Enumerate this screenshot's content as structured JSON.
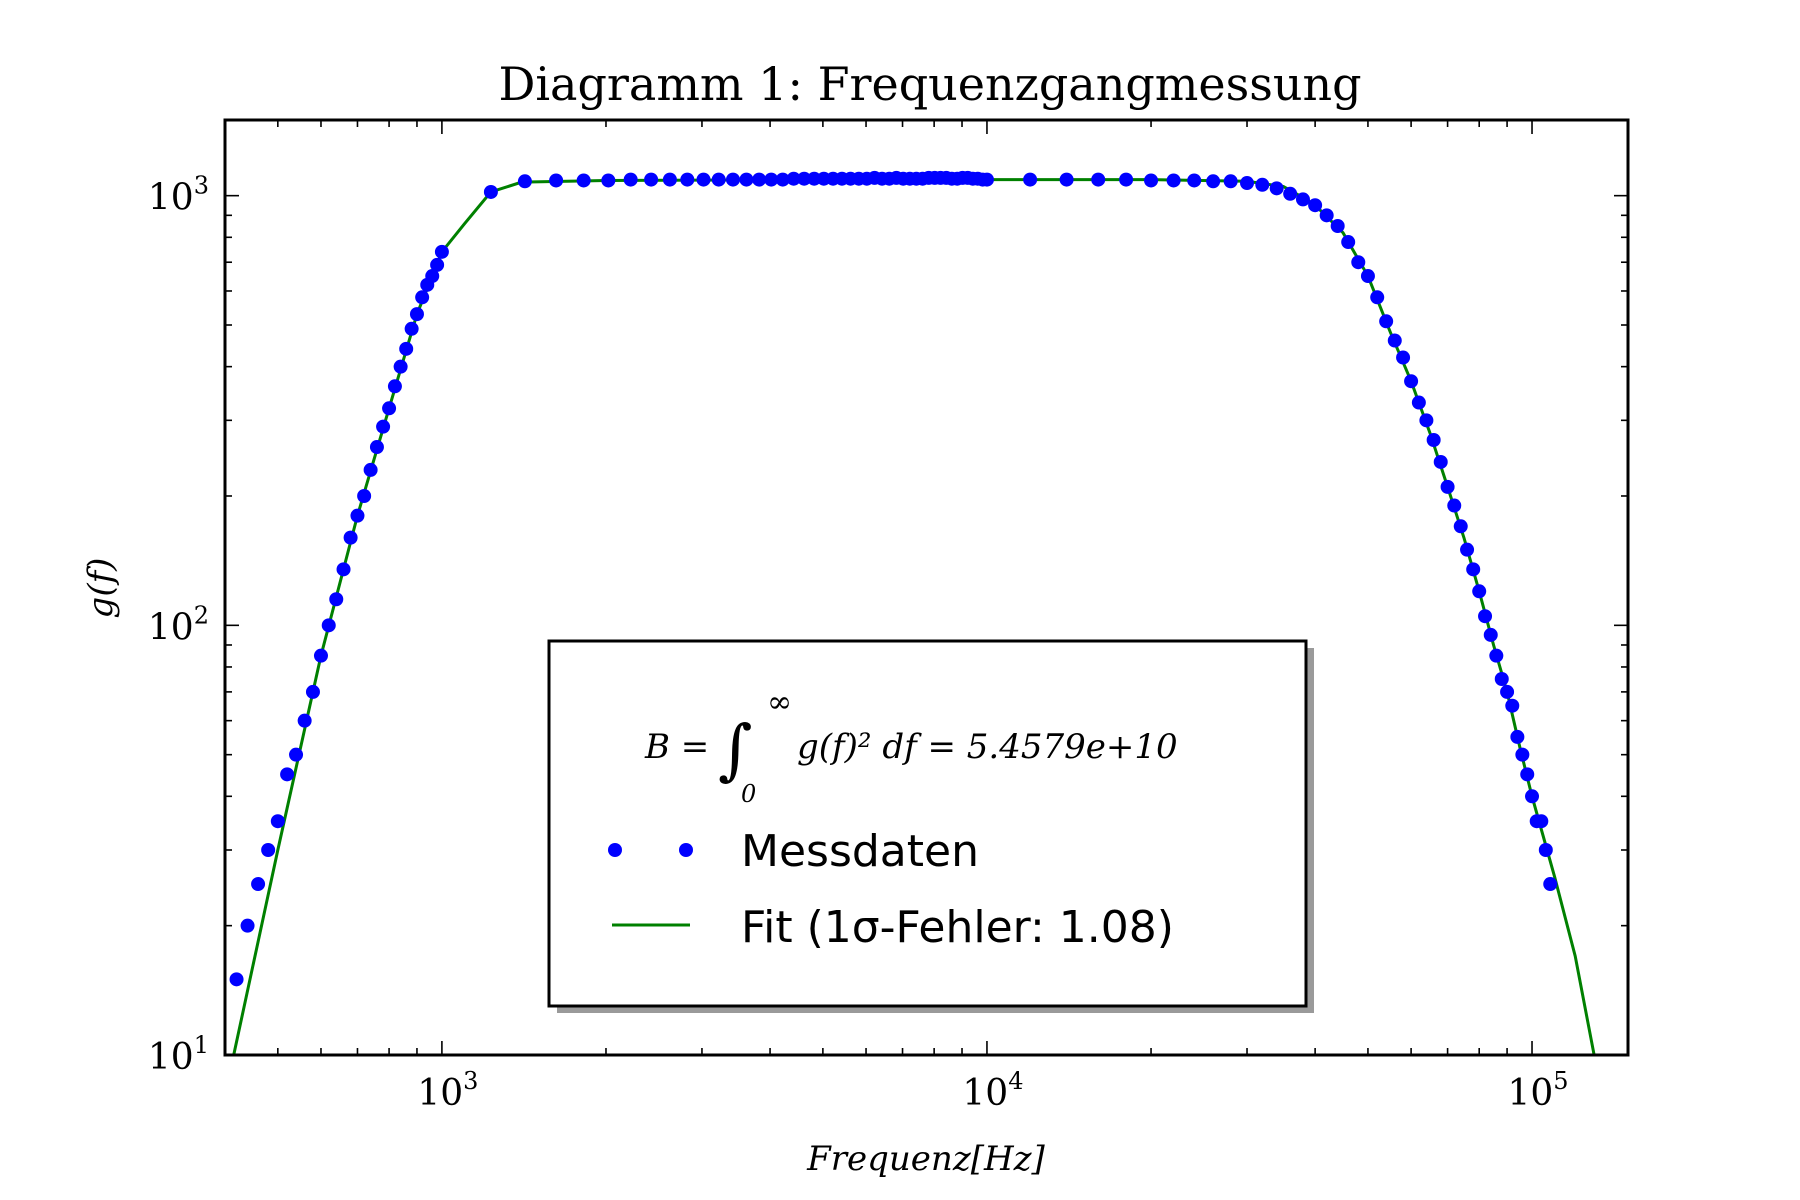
{
  "chart_data": {
    "type": "scatter",
    "title": "Diagramm 1: Frequenzgangmessung",
    "xlabel": "Frequenz[Hz]",
    "ylabel": "g(f)",
    "x_scale": "log",
    "y_scale": "log",
    "xlim": [
      400,
      150000
    ],
    "ylim": [
      10,
      1500
    ],
    "x_ticks": [
      {
        "value": 1000,
        "base": "10",
        "exp": "3"
      },
      {
        "value": 10000,
        "base": "10",
        "exp": "4"
      },
      {
        "value": 100000,
        "base": "10",
        "exp": "5"
      }
    ],
    "y_ticks": [
      {
        "value": 10,
        "base": "10",
        "exp": "1"
      },
      {
        "value": 100,
        "base": "10",
        "exp": "2"
      },
      {
        "value": 1000,
        "base": "10",
        "exp": "3"
      }
    ],
    "grid": false,
    "legend": {
      "placement": "lower-center",
      "annotation": "B = ∫₀^∞ g(f)² df = 5.4579e+10",
      "annotation_parts": {
        "lhs": "B = ",
        "integral": "∫",
        "lower": "0",
        "upper": "∞",
        "rhs": "g(f)² df = 5.4579e+10"
      },
      "entries": [
        {
          "label": "Messdaten",
          "style": "markers",
          "color": "#0000ff"
        },
        {
          "label": "Fit (1σ-Fehler: 1.08)",
          "style": "line",
          "color": "#008000"
        }
      ]
    },
    "series": [
      {
        "name": "Messdaten",
        "style": "markers",
        "color": "#0000ff",
        "points": [
          [
            420,
            15
          ],
          [
            440,
            20
          ],
          [
            460,
            25
          ],
          [
            480,
            30
          ],
          [
            500,
            35
          ],
          [
            520,
            45
          ],
          [
            540,
            50
          ],
          [
            560,
            60
          ],
          [
            580,
            70
          ],
          [
            600,
            85
          ],
          [
            620,
            100
          ],
          [
            640,
            115
          ],
          [
            660,
            135
          ],
          [
            680,
            160
          ],
          [
            700,
            180
          ],
          [
            720,
            200
          ],
          [
            740,
            230
          ],
          [
            760,
            260
          ],
          [
            780,
            290
          ],
          [
            800,
            320
          ],
          [
            820,
            360
          ],
          [
            840,
            400
          ],
          [
            860,
            440
          ],
          [
            880,
            490
          ],
          [
            900,
            530
          ],
          [
            920,
            580
          ],
          [
            940,
            620
          ],
          [
            960,
            650
          ],
          [
            980,
            690
          ],
          [
            1000,
            740
          ],
          [
            1230,
            1020
          ],
          [
            1420,
            1080
          ],
          [
            1620,
            1085
          ],
          [
            1820,
            1085
          ],
          [
            2020,
            1085
          ],
          [
            2220,
            1090
          ],
          [
            2420,
            1090
          ],
          [
            2620,
            1090
          ],
          [
            2820,
            1090
          ],
          [
            3020,
            1090
          ],
          [
            3220,
            1090
          ],
          [
            3420,
            1090
          ],
          [
            3620,
            1090
          ],
          [
            3820,
            1090
          ],
          [
            4020,
            1090
          ],
          [
            4220,
            1090
          ],
          [
            4420,
            1095
          ],
          [
            4620,
            1095
          ],
          [
            4820,
            1095
          ],
          [
            5020,
            1095
          ],
          [
            5220,
            1095
          ],
          [
            5420,
            1095
          ],
          [
            5620,
            1095
          ],
          [
            5820,
            1095
          ],
          [
            6020,
            1095
          ],
          [
            6220,
            1100
          ],
          [
            6420,
            1095
          ],
          [
            6620,
            1095
          ],
          [
            6820,
            1100
          ],
          [
            7020,
            1095
          ],
          [
            7220,
            1095
          ],
          [
            7420,
            1095
          ],
          [
            7620,
            1095
          ],
          [
            7820,
            1100
          ],
          [
            8020,
            1100
          ],
          [
            8220,
            1100
          ],
          [
            8420,
            1100
          ],
          [
            8620,
            1095
          ],
          [
            8820,
            1095
          ],
          [
            9020,
            1100
          ],
          [
            9220,
            1100
          ],
          [
            9420,
            1095
          ],
          [
            9620,
            1095
          ],
          [
            9820,
            1090
          ],
          [
            10000,
            1090
          ],
          [
            12000,
            1090
          ],
          [
            14000,
            1090
          ],
          [
            16000,
            1090
          ],
          [
            18000,
            1090
          ],
          [
            20000,
            1085
          ],
          [
            22000,
            1085
          ],
          [
            24000,
            1085
          ],
          [
            26000,
            1080
          ],
          [
            28000,
            1080
          ],
          [
            30000,
            1070
          ],
          [
            32000,
            1060
          ],
          [
            34000,
            1040
          ],
          [
            36000,
            1010
          ],
          [
            38000,
            980
          ],
          [
            40000,
            950
          ],
          [
            42000,
            900
          ],
          [
            44000,
            850
          ],
          [
            46000,
            780
          ],
          [
            48000,
            700
          ],
          [
            50000,
            650
          ],
          [
            52000,
            580
          ],
          [
            54000,
            510
          ],
          [
            56000,
            460
          ],
          [
            58000,
            420
          ],
          [
            60000,
            370
          ],
          [
            62000,
            330
          ],
          [
            64000,
            300
          ],
          [
            66000,
            270
          ],
          [
            68000,
            240
          ],
          [
            70000,
            210
          ],
          [
            72000,
            190
          ],
          [
            74000,
            170
          ],
          [
            76000,
            150
          ],
          [
            78000,
            135
          ],
          [
            80000,
            120
          ],
          [
            82000,
            105
          ],
          [
            84000,
            95
          ],
          [
            86000,
            85
          ],
          [
            88000,
            75
          ],
          [
            90000,
            70
          ],
          [
            92000,
            65
          ],
          [
            94000,
            55
          ],
          [
            96000,
            50
          ],
          [
            98000,
            45
          ],
          [
            100000,
            40
          ],
          [
            102000,
            35
          ],
          [
            104000,
            35
          ],
          [
            106000,
            30
          ],
          [
            108000,
            25
          ]
        ]
      },
      {
        "name": "Fit (1σ-Fehler: 1.08)",
        "style": "line",
        "color": "#008000",
        "points": [
          [
            415,
            10
          ],
          [
            500,
            30
          ],
          [
            600,
            85
          ],
          [
            700,
            180
          ],
          [
            800,
            320
          ],
          [
            900,
            530
          ],
          [
            1000,
            740
          ],
          [
            1100,
            860
          ],
          [
            1230,
            1020
          ],
          [
            1400,
            1075
          ],
          [
            2000,
            1085
          ],
          [
            5000,
            1090
          ],
          [
            10000,
            1090
          ],
          [
            20000,
            1090
          ],
          [
            30000,
            1080
          ],
          [
            35000,
            1050
          ],
          [
            38000,
            990
          ],
          [
            40000,
            950
          ],
          [
            45000,
            820
          ],
          [
            50000,
            650
          ],
          [
            55000,
            480
          ],
          [
            60000,
            370
          ],
          [
            65000,
            280
          ],
          [
            70000,
            210
          ],
          [
            75000,
            160
          ],
          [
            80000,
            120
          ],
          [
            85000,
            90
          ],
          [
            90000,
            70
          ],
          [
            95000,
            52
          ],
          [
            100000,
            40
          ],
          [
            110000,
            26
          ],
          [
            120000,
            17
          ],
          [
            130000,
            10
          ]
        ]
      }
    ]
  }
}
